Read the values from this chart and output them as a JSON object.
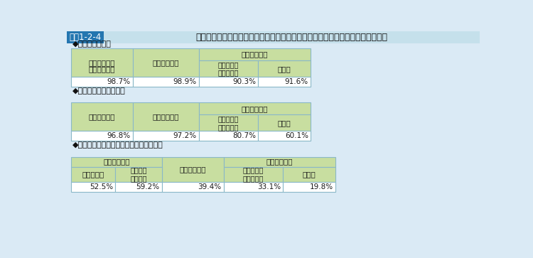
{
  "title": "平成３０年度における学校施設の構造体の耐震化，非構造部材の耐震対策実施率",
  "fig_label": "図表1-2-4",
  "bg_color": "#daeaf5",
  "header_bg": "#c8dea0",
  "white": "#ffffff",
  "border_color": "#8ab8c8",
  "title_label_bg": "#2476b0",
  "title_bg": "#c5e0eb",
  "section1_title": "◆構造体の耐震化",
  "section2_title": "◆吊り天井等の耐震対策",
  "section3_title": "◆吊り天井等以外の非構造部材の耐震対策",
  "table1_values": [
    "98.7%",
    "98.9%",
    "90.3%",
    "91.6%"
  ],
  "table2_values": [
    "96.8%",
    "97.2%",
    "80.7%",
    "60.1%"
  ],
  "table3_values": [
    "52.5%",
    "59.2%",
    "39.4%",
    "33.1%",
    "19.8%"
  ]
}
